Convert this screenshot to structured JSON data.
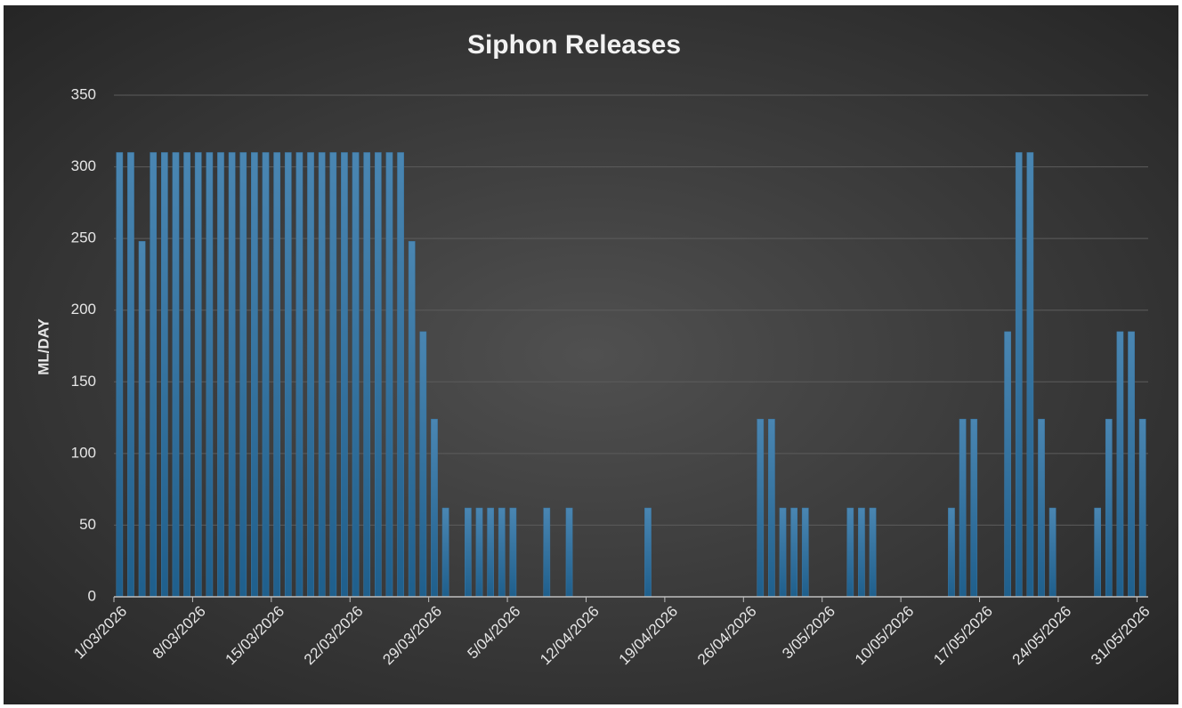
{
  "chart_data": {
    "type": "bar",
    "title": "Siphon Releases",
    "y_label": "ML/DAY",
    "categories": [
      "1/03/2026",
      null,
      null,
      null,
      null,
      null,
      null,
      "8/03/2026",
      null,
      null,
      null,
      null,
      null,
      null,
      "15/03/2026",
      null,
      null,
      null,
      null,
      null,
      null,
      "22/03/2026",
      null,
      null,
      null,
      null,
      null,
      null,
      "29/03/2026",
      null,
      null,
      null,
      null,
      null,
      null,
      "5/04/2026",
      null,
      null,
      null,
      null,
      null,
      null,
      "12/04/2026",
      null,
      null,
      null,
      null,
      null,
      null,
      "19/04/2026",
      null,
      null,
      null,
      null,
      null,
      null,
      "26/04/2026",
      null,
      null,
      null,
      null,
      null,
      null,
      "3/05/2026",
      null,
      null,
      null,
      null,
      null,
      null,
      "10/05/2026",
      null,
      null,
      null,
      null,
      null,
      null,
      "17/05/2026",
      null,
      null,
      null,
      null,
      null,
      null,
      "24/05/2026",
      null,
      null,
      null,
      null,
      null,
      null,
      "31/05/2026"
    ],
    "values": [
      310,
      310,
      248,
      310,
      310,
      310,
      310,
      310,
      310,
      310,
      310,
      310,
      310,
      310,
      310,
      310,
      310,
      310,
      310,
      310,
      310,
      310,
      310,
      310,
      310,
      310,
      248,
      185,
      124,
      62,
      0,
      62,
      62,
      62,
      62,
      62,
      0,
      0,
      62,
      0,
      62,
      0,
      0,
      0,
      0,
      0,
      0,
      62,
      0,
      0,
      0,
      0,
      0,
      0,
      0,
      0,
      0,
      124,
      124,
      62,
      62,
      62,
      0,
      0,
      0,
      62,
      62,
      62,
      0,
      0,
      0,
      0,
      0,
      0,
      62,
      124,
      124,
      0,
      0,
      185,
      310,
      310,
      124,
      62,
      0,
      0,
      0,
      62,
      124,
      185,
      185,
      124
    ],
    "color": "#3a78a6",
    "ylim": [
      0,
      350
    ],
    "yticks": [
      0,
      50,
      100,
      150,
      200,
      250,
      300,
      350
    ],
    "grid": true
  }
}
